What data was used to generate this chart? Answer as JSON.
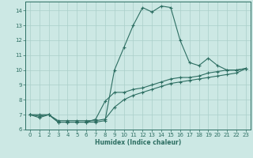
{
  "title": "",
  "xlabel": "Humidex (Indice chaleur)",
  "bg_color": "#cce8e4",
  "line_color": "#2d6e62",
  "grid_color": "#aacfca",
  "xlim": [
    -0.5,
    23.5
  ],
  "ylim": [
    6.0,
    14.6
  ],
  "yticks": [
    6,
    7,
    8,
    9,
    10,
    11,
    12,
    13,
    14
  ],
  "xticks": [
    0,
    1,
    2,
    3,
    4,
    5,
    6,
    7,
    8,
    9,
    10,
    11,
    12,
    13,
    14,
    15,
    16,
    17,
    18,
    19,
    20,
    21,
    22,
    23
  ],
  "series": [
    {
      "x": [
        0,
        1,
        2,
        3,
        4,
        5,
        6,
        7,
        8,
        9,
        10,
        11,
        12,
        13,
        14,
        15,
        16,
        17,
        18,
        19,
        20,
        21,
        22,
        23
      ],
      "y": [
        7.0,
        6.8,
        7.0,
        6.5,
        6.5,
        6.5,
        6.5,
        6.5,
        6.6,
        10.0,
        11.5,
        13.0,
        14.2,
        13.9,
        14.3,
        14.2,
        12.0,
        10.5,
        10.3,
        10.8,
        10.3,
        10.0,
        10.0,
        10.1
      ]
    },
    {
      "x": [
        0,
        1,
        2,
        3,
        4,
        5,
        6,
        7,
        8,
        9,
        10,
        11,
        12,
        13,
        14,
        15,
        16,
        17,
        18,
        19,
        20,
        21,
        22,
        23
      ],
      "y": [
        7.0,
        6.9,
        7.0,
        6.5,
        6.5,
        6.5,
        6.5,
        6.7,
        7.9,
        8.5,
        8.5,
        8.7,
        8.8,
        9.0,
        9.2,
        9.4,
        9.5,
        9.5,
        9.6,
        9.8,
        9.9,
        10.0,
        10.0,
        10.1
      ]
    },
    {
      "x": [
        0,
        1,
        2,
        3,
        4,
        5,
        6,
        7,
        8,
        9,
        10,
        11,
        12,
        13,
        14,
        15,
        16,
        17,
        18,
        19,
        20,
        21,
        22,
        23
      ],
      "y": [
        7.0,
        7.0,
        7.0,
        6.6,
        6.6,
        6.6,
        6.6,
        6.6,
        6.7,
        7.5,
        8.0,
        8.3,
        8.5,
        8.7,
        8.9,
        9.1,
        9.2,
        9.3,
        9.4,
        9.5,
        9.6,
        9.7,
        9.8,
        10.1
      ]
    }
  ]
}
